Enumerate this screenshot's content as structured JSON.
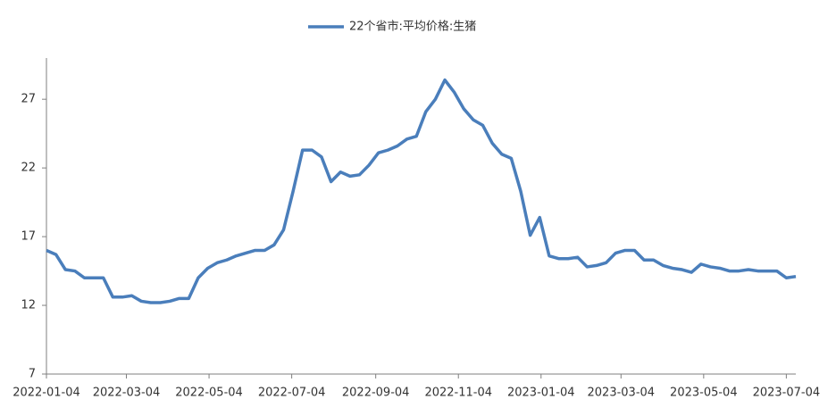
{
  "chart_data": {
    "type": "line",
    "x": [
      "2022-01-04",
      "2022-01-11",
      "2022-01-18",
      "2022-01-25",
      "2022-02-01",
      "2022-02-08",
      "2022-02-15",
      "2022-02-22",
      "2022-03-01",
      "2022-03-08",
      "2022-03-15",
      "2022-03-22",
      "2022-03-29",
      "2022-04-05",
      "2022-04-12",
      "2022-04-19",
      "2022-04-26",
      "2022-05-03",
      "2022-05-10",
      "2022-05-17",
      "2022-05-24",
      "2022-05-31",
      "2022-06-07",
      "2022-06-14",
      "2022-06-21",
      "2022-06-28",
      "2022-07-05",
      "2022-07-12",
      "2022-07-19",
      "2022-07-26",
      "2022-08-02",
      "2022-08-09",
      "2022-08-16",
      "2022-08-23",
      "2022-08-30",
      "2022-09-06",
      "2022-09-13",
      "2022-09-20",
      "2022-09-27",
      "2022-10-04",
      "2022-10-11",
      "2022-10-18",
      "2022-10-25",
      "2022-11-01",
      "2022-11-08",
      "2022-11-15",
      "2022-11-22",
      "2022-11-29",
      "2022-12-06",
      "2022-12-13",
      "2022-12-20",
      "2022-12-27",
      "2023-01-03",
      "2023-01-10",
      "2023-01-17",
      "2023-01-24",
      "2023-01-31",
      "2023-02-07",
      "2023-02-14",
      "2023-02-21",
      "2023-02-28",
      "2023-03-07",
      "2023-03-14",
      "2023-03-21",
      "2023-03-28",
      "2023-04-04",
      "2023-04-11",
      "2023-04-18",
      "2023-04-25",
      "2023-05-02",
      "2023-05-09",
      "2023-05-16",
      "2023-05-23",
      "2023-05-30",
      "2023-06-06",
      "2023-06-13",
      "2023-06-20",
      "2023-06-27",
      "2023-07-04",
      "2023-07-11"
    ],
    "series": [
      {
        "name": "22个省市:平均价格:生猪",
        "color": "#4a7ebb",
        "values": [
          16.0,
          15.7,
          14.6,
          14.5,
          14.0,
          14.0,
          14.0,
          12.6,
          12.6,
          12.7,
          12.3,
          12.2,
          12.2,
          12.3,
          12.5,
          12.5,
          14.0,
          14.7,
          15.1,
          15.3,
          15.6,
          15.8,
          16.0,
          16.0,
          16.4,
          17.5,
          20.3,
          23.3,
          23.3,
          22.8,
          21.0,
          21.7,
          21.4,
          21.5,
          22.2,
          23.1,
          23.3,
          23.6,
          24.1,
          24.3,
          26.1,
          27.0,
          28.4,
          27.5,
          26.3,
          25.5,
          25.1,
          23.8,
          23.0,
          22.7,
          20.3,
          17.1,
          18.4,
          15.6,
          15.4,
          15.4,
          15.5,
          14.8,
          14.9,
          15.1,
          15.8,
          16.0,
          16.0,
          15.3,
          15.3,
          14.9,
          14.7,
          14.6,
          14.4,
          15.0,
          14.8,
          14.7,
          14.5,
          14.5,
          14.6,
          14.5,
          14.5,
          14.5,
          14.0,
          14.1
        ]
      }
    ],
    "xlim": [
      "2022-01-04",
      "2023-07-11"
    ],
    "xticks": [
      "2022-01-04",
      "2022-03-04",
      "2022-05-04",
      "2022-07-04",
      "2022-09-04",
      "2022-11-04",
      "2023-01-04",
      "2023-03-04",
      "2023-05-04",
      "2023-07-04"
    ],
    "ylim": [
      7,
      30
    ],
    "yticks": [
      7,
      12,
      17,
      22,
      27
    ],
    "grid": false,
    "legend": "top"
  }
}
